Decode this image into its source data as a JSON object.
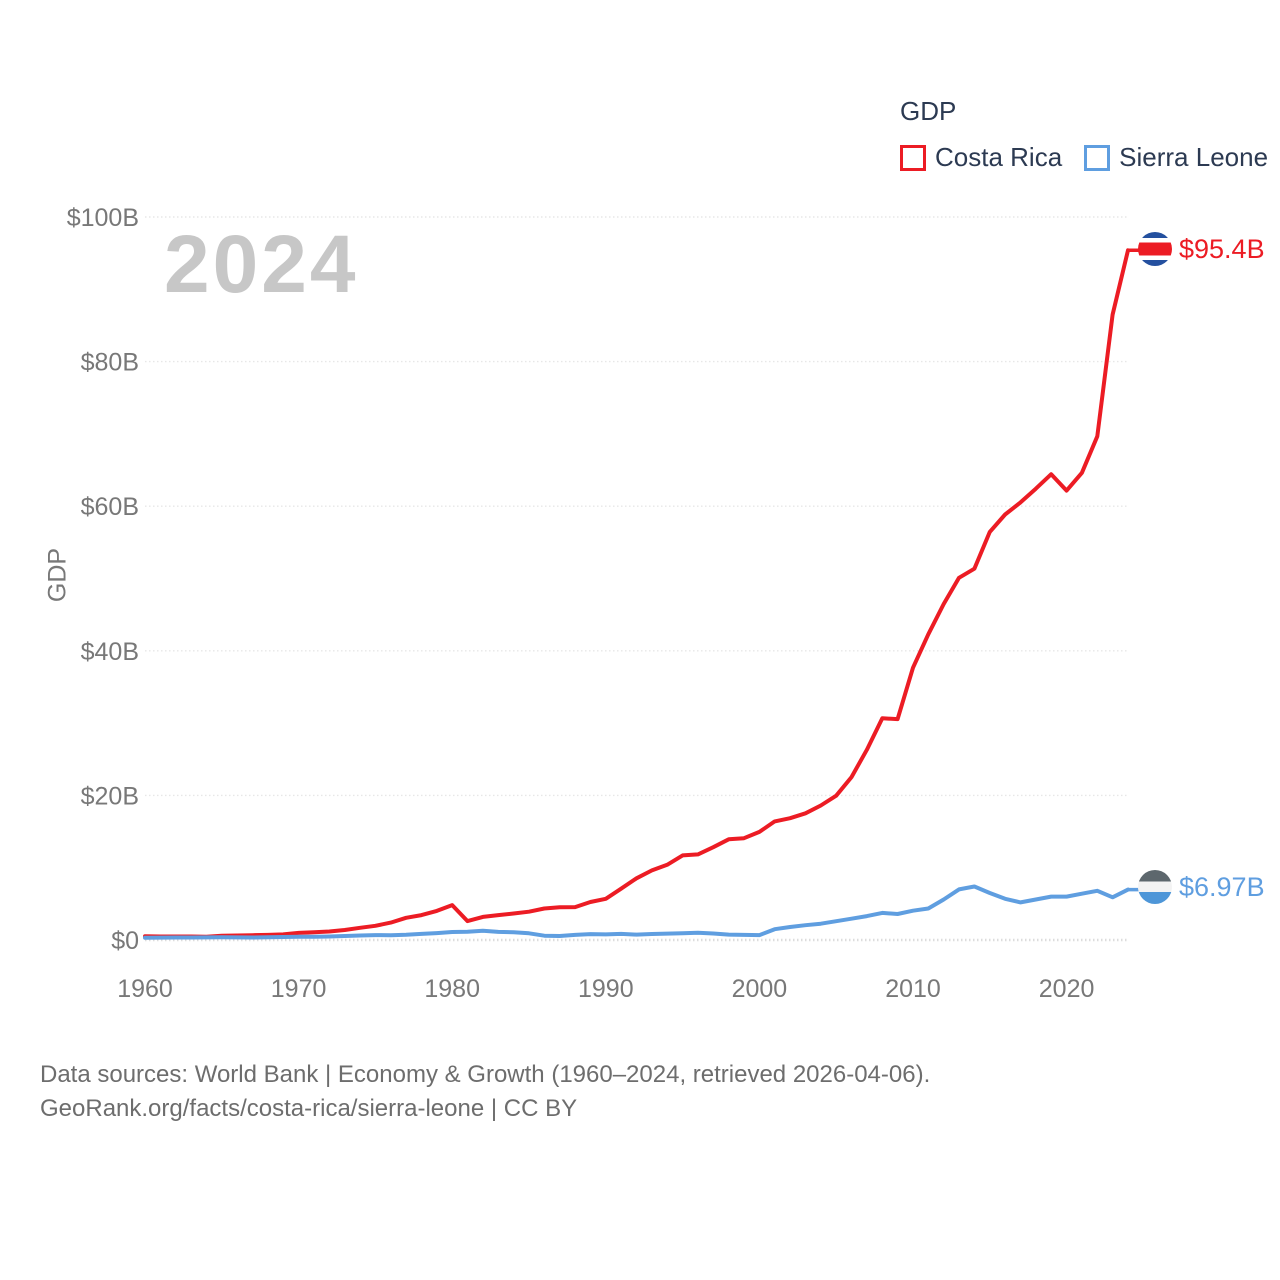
{
  "legend": {
    "title": "GDP",
    "items": [
      {
        "label": "Costa Rica",
        "color": "#ec1c24"
      },
      {
        "label": "Sierra Leone",
        "color": "#5f9ee0"
      }
    ]
  },
  "watermark": "2024",
  "y_axis": {
    "title": "GDP",
    "ticks": [
      "$0",
      "$20B",
      "$40B",
      "$60B",
      "$80B",
      "$100B"
    ]
  },
  "x_axis": {
    "ticks": [
      "1960",
      "1970",
      "1980",
      "1990",
      "2000",
      "2010",
      "2020"
    ]
  },
  "end_labels": [
    {
      "series": "Costa Rica",
      "value": "$95.4B",
      "flag": "costa-rica-flag",
      "color": "#ec1c24"
    },
    {
      "series": "Sierra Leone",
      "value": "$6.97B",
      "flag": "sierra-leone-flag",
      "color": "#5f9ee0"
    }
  ],
  "footer": {
    "line1": "Data sources: World Bank | Economy & Growth (1960–2024, retrieved 2026-04-06).",
    "line2": "GeoRank.org/facts/costa-rica/sierra-leone | CC BY"
  },
  "chart_data": {
    "type": "line",
    "title": "GDP",
    "ylabel": "GDP",
    "units": "current US$, billions",
    "xlim": [
      1960,
      2024
    ],
    "ylim": [
      0,
      100
    ],
    "grid": "horizontal",
    "legend_position": "top-right",
    "yticks_billions": [
      0,
      20,
      40,
      60,
      80,
      100
    ],
    "xticks": [
      1960,
      1970,
      1980,
      1990,
      2000,
      2010,
      2020
    ],
    "x": [
      1960,
      1961,
      1962,
      1963,
      1964,
      1965,
      1966,
      1967,
      1968,
      1969,
      1970,
      1971,
      1972,
      1973,
      1974,
      1975,
      1976,
      1977,
      1978,
      1979,
      1980,
      1981,
      1982,
      1983,
      1984,
      1985,
      1986,
      1987,
      1988,
      1989,
      1990,
      1991,
      1992,
      1993,
      1994,
      1995,
      1996,
      1997,
      1998,
      1999,
      2000,
      2001,
      2002,
      2003,
      2004,
      2005,
      2006,
      2007,
      2008,
      2009,
      2010,
      2011,
      2012,
      2013,
      2014,
      2015,
      2016,
      2017,
      2018,
      2019,
      2020,
      2021,
      2022,
      2023,
      2024
    ],
    "series": [
      {
        "name": "Costa Rica",
        "color": "#ec1c24",
        "end_label": "$95.4B",
        "values": [
          0.51,
          0.49,
          0.48,
          0.48,
          0.46,
          0.59,
          0.62,
          0.66,
          0.71,
          0.78,
          0.98,
          1.08,
          1.18,
          1.39,
          1.69,
          1.96,
          2.41,
          3.07,
          3.45,
          4.03,
          4.83,
          2.62,
          3.19,
          3.45,
          3.67,
          3.92,
          4.36,
          4.52,
          4.55,
          5.26,
          5.7,
          7.1,
          8.54,
          9.62,
          10.4,
          11.7,
          11.84,
          12.83,
          13.93,
          14.08,
          14.95,
          16.4,
          16.84,
          17.52,
          18.6,
          19.96,
          22.53,
          26.32,
          30.66,
          30.56,
          37.66,
          42.28,
          46.47,
          50.1,
          51.36,
          56.44,
          58.85,
          60.52,
          62.42,
          64.42,
          62.16,
          64.62,
          69.67,
          86.5,
          95.4
        ]
      },
      {
        "name": "Sierra Leone",
        "color": "#5f9ee0",
        "end_label": "$6.97B",
        "values": [
          0.32,
          0.33,
          0.34,
          0.35,
          0.36,
          0.37,
          0.36,
          0.35,
          0.37,
          0.42,
          0.45,
          0.45,
          0.49,
          0.55,
          0.62,
          0.68,
          0.65,
          0.72,
          0.85,
          0.96,
          1.1,
          1.15,
          1.28,
          1.12,
          1.08,
          0.92,
          0.6,
          0.55,
          0.7,
          0.82,
          0.78,
          0.85,
          0.75,
          0.83,
          0.88,
          0.94,
          1.0,
          0.9,
          0.75,
          0.7,
          0.68,
          1.5,
          1.8,
          2.05,
          2.25,
          2.6,
          2.95,
          3.3,
          3.75,
          3.6,
          4.05,
          4.35,
          5.6,
          7.0,
          7.4,
          6.5,
          5.7,
          5.2,
          5.6,
          6.0,
          6.0,
          6.4,
          6.8,
          5.9,
          6.97
        ]
      }
    ]
  }
}
